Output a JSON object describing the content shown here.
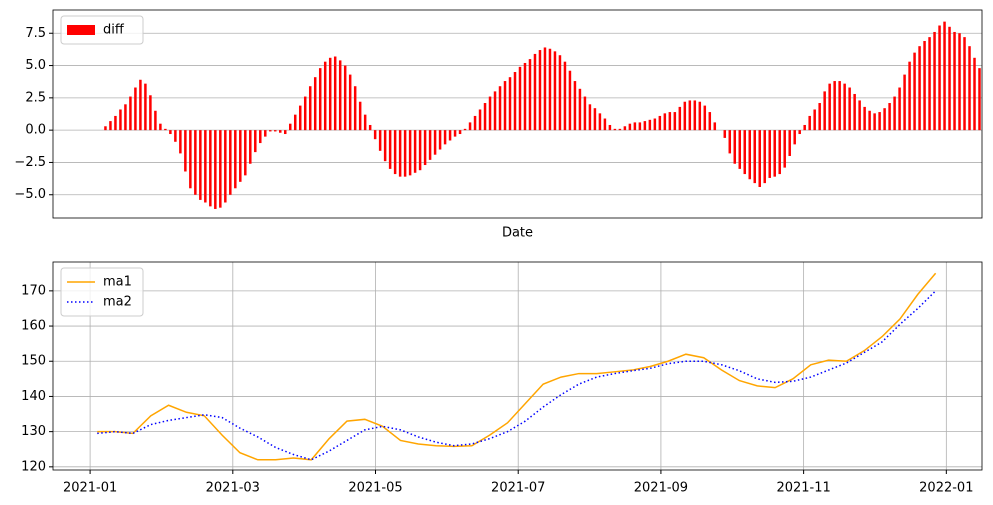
{
  "chart_data": [
    {
      "type": "bar",
      "xlabel": "Date",
      "legend": "upper left",
      "grid": "y",
      "ylim": [
        -6.8,
        9.3
      ],
      "yticks": [
        {
          "value": -5,
          "label": "−5.0"
        },
        {
          "value": -2.5,
          "label": "−2.5"
        },
        {
          "value": 0,
          "label": "0.0"
        },
        2.5,
        {
          "value": 5,
          "label": "5.0"
        },
        7.5
      ],
      "series": [
        {
          "name": "diff",
          "color": "#ff0000",
          "values": [
            null,
            null,
            null,
            null,
            null,
            null,
            null,
            null,
            null,
            null,
            0.3,
            0.7,
            1.1,
            1.6,
            2.0,
            2.6,
            3.3,
            3.9,
            3.6,
            2.7,
            1.5,
            0.5,
            0.1,
            -0.3,
            -0.9,
            -1.8,
            -3.2,
            -4.5,
            -5.0,
            -5.4,
            -5.6,
            -5.9,
            -6.1,
            -6.0,
            -5.6,
            -5.0,
            -4.5,
            -4.0,
            -3.5,
            -2.6,
            -1.7,
            -1.0,
            -0.5,
            -0.1,
            -0.1,
            -0.2,
            -0.3,
            0.5,
            1.2,
            1.9,
            2.6,
            3.4,
            4.1,
            4.8,
            5.3,
            5.6,
            5.7,
            5.4,
            5.0,
            4.3,
            3.4,
            2.2,
            1.2,
            0.4,
            -0.7,
            -1.6,
            -2.4,
            -3.0,
            -3.4,
            -3.6,
            -3.6,
            -3.5,
            -3.3,
            -3.1,
            -2.7,
            -2.3,
            -1.9,
            -1.5,
            -1.1,
            -0.8,
            -0.5,
            -0.3,
            0.1,
            0.6,
            1.1,
            1.6,
            2.1,
            2.6,
            3.0,
            3.4,
            3.8,
            4.1,
            4.5,
            4.9,
            5.2,
            5.5,
            5.9,
            6.2,
            6.4,
            6.3,
            6.1,
            5.8,
            5.3,
            4.6,
            3.8,
            3.2,
            2.6,
            2.0,
            1.7,
            1.3,
            0.9,
            0.4,
            0.1,
            0.1,
            0.3,
            0.5,
            0.6,
            0.6,
            0.7,
            0.8,
            0.9,
            1.1,
            1.3,
            1.4,
            1.4,
            1.8,
            2.2,
            2.3,
            2.3,
            2.2,
            1.9,
            1.4,
            0.6,
            0.0,
            -0.6,
            -1.8,
            -2.6,
            -3.0,
            -3.4,
            -3.8,
            -4.1,
            -4.4,
            -4.1,
            -3.7,
            -3.6,
            -3.4,
            -2.9,
            -2.0,
            -1.1,
            -0.3,
            0.4,
            1.1,
            1.6,
            2.1,
            3.0,
            3.6,
            3.8,
            3.8,
            3.6,
            3.3,
            2.8,
            2.3,
            1.8,
            1.5,
            1.3,
            1.4,
            1.7,
            2.1,
            2.6,
            3.3,
            4.3,
            5.3,
            6.0,
            6.5,
            6.9,
            7.2,
            7.6,
            8.1,
            8.4,
            8.0,
            7.6,
            7.5,
            7.2,
            6.5,
            5.6,
            4.8
          ]
        }
      ]
    },
    {
      "type": "line",
      "legend": "upper left",
      "grid": "both",
      "xlim": [
        -0.52,
        12.5
      ],
      "xticks": [
        {
          "value": 0,
          "label": "2021-01"
        },
        {
          "value": 2,
          "label": "2021-03"
        },
        {
          "value": 4,
          "label": "2021-05"
        },
        {
          "value": 6,
          "label": "2021-07"
        },
        {
          "value": 8,
          "label": "2021-09"
        },
        {
          "value": 10,
          "label": "2021-11"
        },
        {
          "value": 12,
          "label": "2022-01"
        }
      ],
      "ylim": [
        119.1,
        178.2
      ],
      "yticks": [
        120,
        130,
        140,
        150,
        160,
        170
      ],
      "x": [
        0.1,
        0.35,
        0.6,
        0.85,
        1.1,
        1.35,
        1.6,
        1.85,
        2.1,
        2.35,
        2.6,
        2.85,
        3.1,
        3.35,
        3.6,
        3.85,
        4.1,
        4.35,
        4.6,
        4.85,
        5.1,
        5.35,
        5.6,
        5.85,
        6.1,
        6.35,
        6.6,
        6.85,
        7.1,
        7.35,
        7.6,
        7.85,
        8.1,
        8.35,
        8.6,
        8.85,
        9.1,
        9.35,
        9.6,
        9.85,
        10.1,
        10.35,
        10.6,
        10.85,
        11.1,
        11.35,
        11.6,
        11.85
      ],
      "series": [
        {
          "name": "ma1",
          "color": "#ffa500",
          "style": "solid",
          "values": [
            130,
            130,
            129.5,
            134.5,
            137.5,
            135.5,
            134.5,
            129,
            124,
            122,
            122,
            122.5,
            122,
            128,
            133,
            133.5,
            131.5,
            127.5,
            126.5,
            126,
            125.8,
            126,
            129,
            132.5,
            138,
            143.5,
            145.5,
            146.5,
            146.5,
            147,
            147.5,
            148.5,
            150,
            152,
            151,
            147.5,
            144.5,
            143,
            142.5,
            145,
            149,
            150.3,
            150,
            153,
            157,
            162,
            169,
            175
          ]
        },
        {
          "name": "ma2",
          "color": "#0000ff",
          "style": "dotted",
          "values": [
            129.5,
            130,
            129.5,
            132,
            133.2,
            134,
            134.8,
            134,
            131,
            128.5,
            125.5,
            123.5,
            122,
            124.5,
            127.5,
            130.5,
            131.5,
            130.5,
            128.5,
            127,
            126,
            126.5,
            128,
            130,
            133,
            137,
            140.5,
            143.5,
            145.5,
            146.5,
            147.3,
            148,
            149.3,
            150,
            150,
            149,
            147.3,
            145,
            144,
            144.3,
            145.5,
            147.5,
            149.5,
            152.5,
            155.5,
            160.5,
            165,
            170
          ]
        }
      ]
    }
  ]
}
